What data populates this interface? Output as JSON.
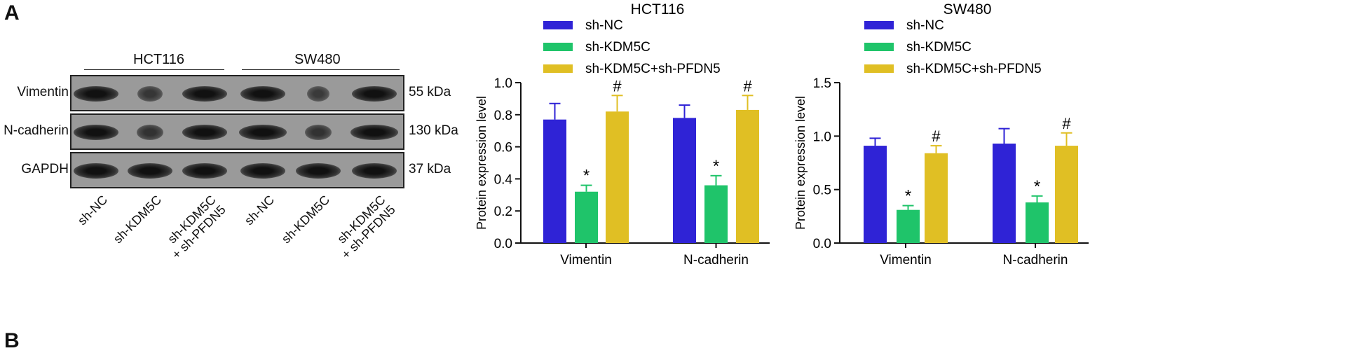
{
  "panels": {
    "a": "A",
    "b": "B"
  },
  "blot": {
    "cell_lines": [
      "HCT116",
      "SW480"
    ],
    "rows": [
      {
        "label": "Vimentin",
        "kda": "55 kDa",
        "intensity": [
          1,
          0.55,
          1,
          1,
          0.5,
          1
        ]
      },
      {
        "label": "N-cadherin",
        "kda": "130 kDa",
        "intensity": [
          1,
          0.6,
          1,
          1.05,
          0.6,
          1.05
        ]
      },
      {
        "label": "GAPDH",
        "kda": "37 kDa",
        "intensity": [
          1,
          1,
          1,
          1,
          1,
          1
        ]
      }
    ],
    "lanes": [
      "sh-NC",
      "sh-KDM5C",
      "sh-KDM5C\n+ sh-PFDN5",
      "sh-NC",
      "sh-KDM5C",
      "sh-KDM5C\n+ sh-PFDN5"
    ]
  },
  "chart_data": [
    {
      "type": "bar",
      "title": "HCT116",
      "ylabel": "Protein expression level",
      "xlabel": "",
      "ylim": [
        0,
        1.0
      ],
      "yticks": [
        "0.0",
        "0.2",
        "0.4",
        "0.6",
        "0.8",
        "1.0"
      ],
      "categories": [
        "Vimentin",
        "N-cadherin"
      ],
      "legend_position": "top",
      "series": [
        {
          "name": "sh-NC",
          "color": "#2f23d6",
          "values": [
            0.77,
            0.78
          ],
          "error": [
            0.1,
            0.08
          ],
          "marks": [
            "",
            ""
          ]
        },
        {
          "name": "sh-KDM5C",
          "color": "#1fc46a",
          "values": [
            0.32,
            0.36
          ],
          "error": [
            0.04,
            0.06
          ],
          "marks": [
            "*",
            "*"
          ]
        },
        {
          "name": "sh-KDM5C+sh-PFDN5",
          "color": "#e0bf24",
          "values": [
            0.82,
            0.83
          ],
          "error": [
            0.1,
            0.09
          ],
          "marks": [
            "#",
            "#"
          ]
        }
      ]
    },
    {
      "type": "bar",
      "title": "SW480",
      "ylabel": "Protein expression level",
      "xlabel": "",
      "ylim": [
        0,
        1.5
      ],
      "yticks": [
        "0.0",
        "0.5",
        "1.0",
        "1.5"
      ],
      "categories": [
        "Vimentin",
        "N-cadherin"
      ],
      "legend_position": "top",
      "series": [
        {
          "name": "sh-NC",
          "color": "#2f23d6",
          "values": [
            0.91,
            0.93
          ],
          "error": [
            0.07,
            0.14
          ],
          "marks": [
            "",
            ""
          ]
        },
        {
          "name": "sh-KDM5C",
          "color": "#1fc46a",
          "values": [
            0.31,
            0.38
          ],
          "error": [
            0.04,
            0.06
          ],
          "marks": [
            "*",
            "*"
          ]
        },
        {
          "name": "sh-KDM5C+sh-PFDN5",
          "color": "#e0bf24",
          "values": [
            0.84,
            0.91
          ],
          "error": [
            0.07,
            0.12
          ],
          "marks": [
            "#",
            "#"
          ]
        }
      ]
    }
  ]
}
